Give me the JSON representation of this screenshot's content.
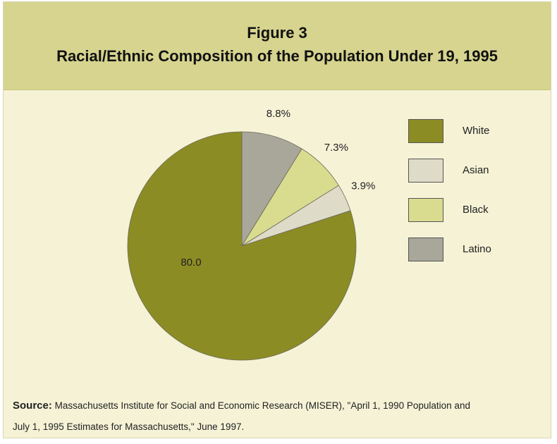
{
  "figure": {
    "number_label": "Figure 3",
    "title": "Racial/Ethnic Composition of the Population Under 19, 1995"
  },
  "source": {
    "label": "Source:",
    "line1": "Massachusetts Institute for Social and Economic Research (MISER), \"April 1, 1990 Population and",
    "line2": "July 1, 1995 Estimates for Massachusetts,\" June 1997."
  },
  "legend": [
    {
      "label": "White"
    },
    {
      "label": "Asian"
    },
    {
      "label": "Black"
    },
    {
      "label": "Latino"
    }
  ],
  "colors": {
    "panel_bg": "#f5f2d6",
    "title_band": "#d6d48e",
    "white": "#8c8c24",
    "asian": "#dedbc8",
    "black": "#d9dc8e",
    "latino": "#a8a79a"
  },
  "chart_data": {
    "type": "pie",
    "title": "Racial/Ethnic Composition of the Population Under 19, 1995",
    "start": "12 o'clock",
    "direction": "clockwise",
    "slice_order": [
      "Latino",
      "Black",
      "Asian",
      "White"
    ],
    "slices": [
      {
        "name": "Latino",
        "value": 8.8,
        "label": "8.8%",
        "color": "#a8a79a"
      },
      {
        "name": "Black",
        "value": 7.3,
        "label": "7.3%",
        "color": "#d9dc8e"
      },
      {
        "name": "Asian",
        "value": 3.9,
        "label": "3.9%",
        "color": "#dedbc8"
      },
      {
        "name": "White",
        "value": 80.0,
        "label": "80.0",
        "color": "#8c8c24"
      }
    ]
  }
}
